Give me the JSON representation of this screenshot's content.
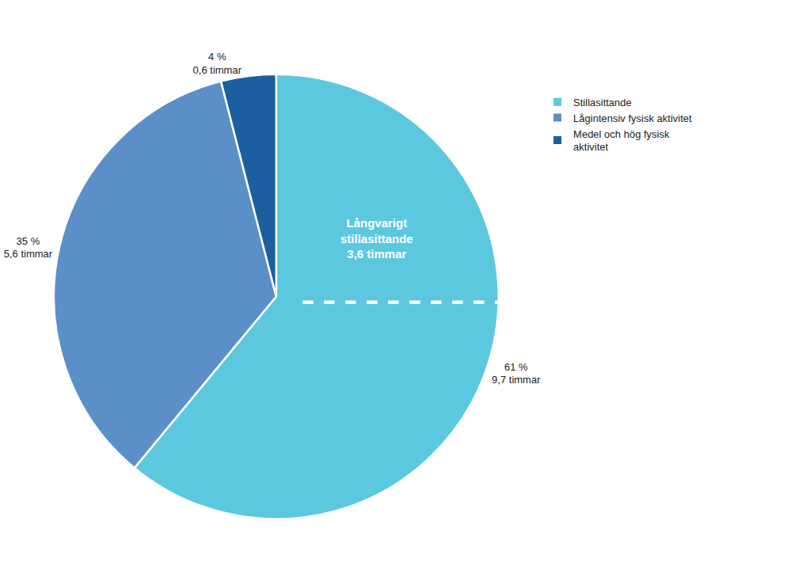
{
  "chart_data": {
    "type": "pie",
    "categories": [
      "Stillasittande",
      "Lågintensiv fysisk aktivitet",
      "Medel och hög fysisk\naktivitet"
    ],
    "values": [
      61,
      35,
      4
    ],
    "value_labels": [
      "61 %",
      "35 %",
      "4 %"
    ],
    "hours_labels": [
      "9,7 timmar",
      "5,6 timmar",
      "0,6 timmar"
    ],
    "colors": [
      "#5BC8E0",
      "#5B8FC7",
      "#1C5FA0"
    ],
    "data_labels": true,
    "legend": "upper right",
    "annotations": [
      {
        "text": "Långvarigt\nstillasittande\n3,6 timmar"
      }
    ]
  }
}
